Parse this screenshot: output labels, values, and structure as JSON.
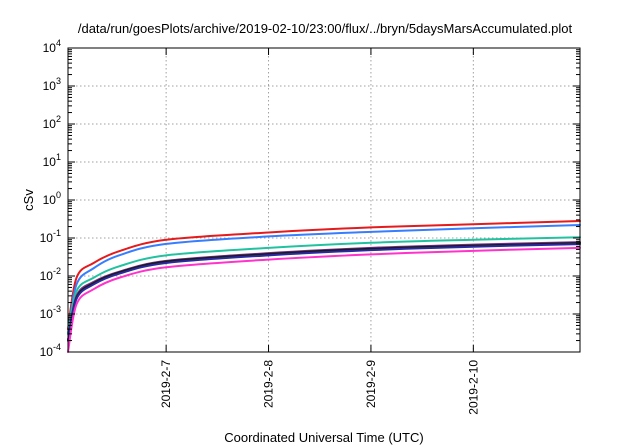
{
  "chart_data": {
    "type": "line",
    "title": "/data/run/goesPlots/archive/2019-02-10/23:00/flux/../bryn/5daysMarsAccumulated.plot",
    "xlabel": "Coordinated Universal Time (UTC)",
    "ylabel": "cSv",
    "xlim": [
      "2019-02-06T01:00",
      "2019-02-11T01:00"
    ],
    "x_ticks": [
      "2019-2-7",
      "2019-2-8",
      "2019-2-9",
      "2019-2-10"
    ],
    "x_tick_dates": [
      "2019-02-07T00:00",
      "2019-02-08T00:00",
      "2019-02-09T00:00",
      "2019-02-10T00:00"
    ],
    "y_scale": "log",
    "ylim": [
      0.0001,
      10000
    ],
    "y_ticks": [
      {
        "base": "10",
        "exp": "-4"
      },
      {
        "base": "10",
        "exp": "-3"
      },
      {
        "base": "10",
        "exp": "-2"
      },
      {
        "base": "10",
        "exp": "-1"
      },
      {
        "base": "10",
        "exp": "0"
      },
      {
        "base": "10",
        "exp": "1"
      },
      {
        "base": "10",
        "exp": "2"
      },
      {
        "base": "10",
        "exp": "3"
      },
      {
        "base": "10",
        "exp": "4"
      }
    ],
    "grid": true,
    "legend": "none",
    "x": [
      "2019-02-06T01:00",
      "2019-02-06T03:00",
      "2019-02-06T07:00",
      "2019-02-06T13:00",
      "2019-02-07T00:00",
      "2019-02-08T00:00",
      "2019-02-09T00:00",
      "2019-02-10T00:00",
      "2019-02-11T01:00"
    ],
    "series": [
      {
        "color": "#e41a1c",
        "values": [
          0.0004,
          0.009,
          0.022,
          0.045,
          0.09,
          0.14,
          0.19,
          0.23,
          0.28
        ]
      },
      {
        "color": "#377eff",
        "values": [
          0.0003,
          0.006,
          0.016,
          0.035,
          0.07,
          0.11,
          0.145,
          0.18,
          0.22
        ]
      },
      {
        "color": "#20c2a0",
        "values": [
          0.0003,
          0.004,
          0.009,
          0.018,
          0.035,
          0.055,
          0.075,
          0.09,
          0.105
        ]
      },
      {
        "color": "#7a2f8f",
        "values": [
          0.0002,
          0.003,
          0.007,
          0.013,
          0.025,
          0.04,
          0.055,
          0.067,
          0.078
        ]
      },
      {
        "color": "#1a1a1a",
        "values": [
          0.0002,
          0.0027,
          0.0065,
          0.0125,
          0.024,
          0.038,
          0.052,
          0.063,
          0.074
        ]
      },
      {
        "color": "#2a2aa0",
        "values": [
          0.0002,
          0.0025,
          0.006,
          0.0115,
          0.022,
          0.035,
          0.048,
          0.059,
          0.069
        ]
      },
      {
        "color": "#ff33cc",
        "values": [
          0.0001,
          0.0018,
          0.0045,
          0.009,
          0.017,
          0.027,
          0.037,
          0.046,
          0.055
        ]
      }
    ]
  }
}
